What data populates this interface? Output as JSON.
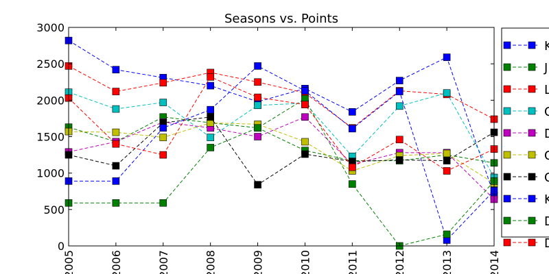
{
  "chart_data": {
    "type": "line",
    "title": "Seasons vs. Points",
    "xlabel": "",
    "ylabel": "",
    "x": [
      2005,
      2006,
      2007,
      2008,
      2009,
      2010,
      2011,
      2012,
      2013,
      2014
    ],
    "x_tick_labels": [
      "2005",
      "2006",
      "2007",
      "2008",
      "2009",
      "2010",
      "2011",
      "2012",
      "2013",
      "2014"
    ],
    "ylim": [
      0,
      3000
    ],
    "y_ticks": [
      0,
      500,
      1000,
      1500,
      2000,
      2500,
      3000
    ],
    "y_tick_labels": [
      "0",
      "500",
      "1000",
      "1500",
      "2000",
      "2500",
      "3000"
    ],
    "grid": false,
    "legend_position": "right, cut off by image edge",
    "series": [
      {
        "name": "K",
        "color": "#0000ff",
        "values": [
          2820,
          2420,
          2310,
          2200,
          1980,
          2160,
          1840,
          2270,
          2590,
          690
        ]
      },
      {
        "name": "J",
        "color": "#008000",
        "values": [
          1630,
          1430,
          1770,
          1690,
          1620,
          1310,
          1170,
          1170,
          1250,
          1140
        ]
      },
      {
        "name": "L",
        "color": "#ff0000",
        "values": [
          2470,
          2120,
          2240,
          2380,
          2250,
          2100,
          1620,
          2130,
          2080,
          1740
        ]
      },
      {
        "name": "C",
        "color": "#00bfbf",
        "values": [
          2110,
          1880,
          1970,
          1490,
          1930,
          1960,
          1230,
          1920,
          2100,
          940
        ]
      },
      {
        "name": "D",
        "color": "#bf00bf",
        "values": [
          1290,
          1430,
          1700,
          1620,
          1500,
          1770,
          1120,
          1280,
          1280,
          640
        ]
      },
      {
        "name": "C",
        "color": "#bfbf00",
        "values": [
          1570,
          1560,
          1490,
          1690,
          1670,
          1430,
          1030,
          1240,
          1270,
          860
        ]
      },
      {
        "name": "C",
        "color": "#000000",
        "values": [
          1250,
          1100,
          1690,
          1770,
          840,
          1260,
          1160,
          1180,
          1170,
          1560
        ]
      },
      {
        "name": "K",
        "color": "#0000ff",
        "values": [
          890,
          890,
          1620,
          1870,
          2470,
          2130,
          1610,
          2120,
          80,
          760
        ]
      },
      {
        "name": "D",
        "color": "#008000",
        "values": [
          590,
          590,
          590,
          1350,
          1620,
          2020,
          850,
          0,
          160,
          890
        ]
      },
      {
        "name": "D",
        "color": "#ff0000",
        "values": [
          2030,
          1400,
          1250,
          2320,
          2040,
          1940,
          1080,
          1460,
          1030,
          1330
        ]
      }
    ]
  }
}
